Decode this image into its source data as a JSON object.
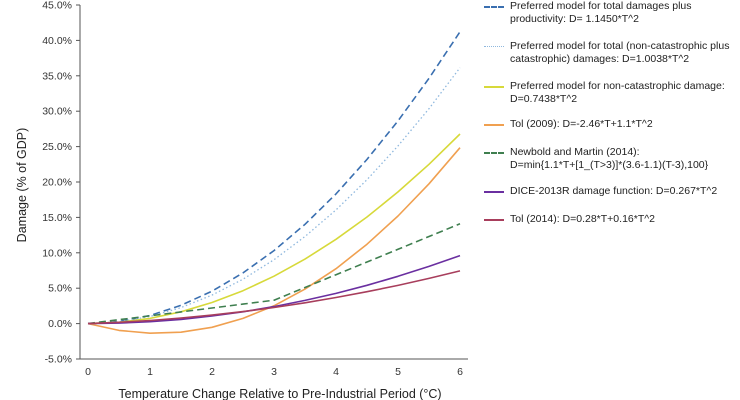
{
  "chart_data": {
    "type": "line",
    "xlabel": "Temperature Change Relative to Pre-Industrial Period (°C)",
    "ylabel": "Damage (% of GDP)",
    "xlim": [
      0,
      6
    ],
    "ylim": [
      -5,
      45
    ],
    "x_ticks": [
      "0",
      "1",
      "2",
      "3",
      "4",
      "5",
      "6"
    ],
    "y_ticks": [
      "-5.0%",
      "0.0%",
      "5.0%",
      "10.0%",
      "15.0%",
      "20.0%",
      "25.0%",
      "30.0%",
      "35.0%",
      "40.0%",
      "45.0%"
    ],
    "grid": false,
    "legend_position": "right",
    "x": [
      0,
      0.5,
      1,
      1.5,
      2,
      2.5,
      3,
      3.5,
      4,
      4.5,
      5,
      5.5,
      6
    ],
    "series": [
      {
        "name": "Preferred model for total damages plus productivity: D= 1.1450*T^2",
        "color": "#3a6fb0",
        "style": "dashed",
        "values": [
          0,
          0.29,
          1.15,
          2.58,
          4.58,
          7.16,
          10.31,
          14.03,
          18.32,
          23.19,
          28.63,
          34.64,
          41.22
        ]
      },
      {
        "name": "Preferred model for total (non-catastrophic plus catastrophic) damages: D=1.0038*T^2",
        "color": "#8fb8de",
        "style": "dotted",
        "values": [
          0,
          0.25,
          1.0,
          2.26,
          4.02,
          6.27,
          9.03,
          12.3,
          16.06,
          20.33,
          25.1,
          30.36,
          36.14
        ]
      },
      {
        "name": "Preferred model for non-catastrophic damage: D=0.7438*T^2",
        "color": "#d7d93a",
        "style": "solid",
        "values": [
          0,
          0.19,
          0.74,
          1.67,
          2.98,
          4.65,
          6.69,
          9.11,
          11.9,
          15.06,
          18.6,
          22.5,
          26.78
        ]
      },
      {
        "name": "Tol (2009): D=-2.46*T+1.1*T^2",
        "color": "#f0a050",
        "style": "solid",
        "values": [
          0,
          -0.96,
          -1.36,
          -1.22,
          -0.52,
          0.73,
          2.52,
          4.87,
          7.76,
          11.21,
          15.2,
          19.75,
          24.84
        ]
      },
      {
        "name": "Newbold and Martin (2014):\nD=min{1.1*T+[1_(T>3)]*(3.6-1.1)(T-3),100}",
        "color": "#3f7f4f",
        "style": "dashed",
        "values": [
          0,
          0.55,
          1.1,
          1.65,
          2.2,
          2.75,
          3.3,
          5.1,
          6.9,
          8.7,
          10.5,
          12.3,
          14.1
        ]
      },
      {
        "name": "DICE-2013R damage function: D=0.267*T^2",
        "color": "#6a2fa0",
        "style": "solid",
        "values": [
          0,
          0.07,
          0.27,
          0.6,
          1.07,
          1.67,
          2.4,
          3.27,
          4.27,
          5.41,
          6.68,
          8.08,
          9.61
        ]
      },
      {
        "name": "Tol (2014): D=0.28*T+0.16*T^2",
        "color": "#a83e5c",
        "style": "solid",
        "values": [
          0,
          0.18,
          0.44,
          0.78,
          1.2,
          1.7,
          2.28,
          2.94,
          3.68,
          4.5,
          5.4,
          6.38,
          7.44
        ]
      }
    ]
  }
}
